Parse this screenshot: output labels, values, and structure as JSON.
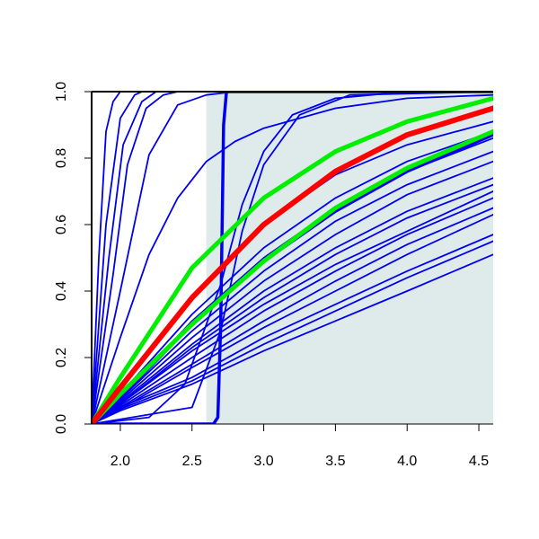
{
  "chart_data": {
    "type": "line",
    "title": "",
    "xlabel": "",
    "ylabel": "",
    "xlim": [
      1.8,
      4.6
    ],
    "ylim": [
      0.0,
      1.0
    ],
    "x_ticks": [
      {
        "value": 2.0,
        "label": "2.0"
      },
      {
        "value": 2.5,
        "label": "2.5"
      },
      {
        "value": 3.0,
        "label": "3.0"
      },
      {
        "value": 3.5,
        "label": "3.5"
      },
      {
        "value": 4.0,
        "label": "4.0"
      },
      {
        "value": 4.5,
        "label": "4.5"
      }
    ],
    "y_ticks": [
      {
        "value": 0.0,
        "label": "0.0"
      },
      {
        "value": 0.2,
        "label": "0.2"
      },
      {
        "value": 0.4,
        "label": "0.4"
      },
      {
        "value": 0.6,
        "label": "0.6"
      },
      {
        "value": 0.8,
        "label": "0.8"
      },
      {
        "value": 1.0,
        "label": "1.0"
      }
    ],
    "shaded_region": {
      "x_from": 2.6,
      "x_to": 4.6,
      "color": "#dfeaea"
    },
    "grid": false,
    "legend": "none",
    "x_start": 1.8,
    "colors": {
      "blue": "#0000ee",
      "red": "#ff0000",
      "green": "#00ee00",
      "axis": "#000000"
    },
    "series": [
      {
        "role": "blue",
        "points": [
          [
            1.8,
            0
          ],
          [
            1.85,
            0.5
          ],
          [
            1.9,
            0.88
          ],
          [
            1.95,
            0.97
          ],
          [
            2.0,
            1.0
          ],
          [
            4.6,
            1.0
          ]
        ]
      },
      {
        "role": "blue",
        "points": [
          [
            1.8,
            0
          ],
          [
            1.9,
            0.6
          ],
          [
            2.0,
            0.92
          ],
          [
            2.1,
            0.99
          ],
          [
            2.15,
            1.0
          ],
          [
            4.6,
            1.0
          ]
        ]
      },
      {
        "role": "blue",
        "points": [
          [
            1.8,
            0
          ],
          [
            1.92,
            0.5
          ],
          [
            2.02,
            0.84
          ],
          [
            2.15,
            0.97
          ],
          [
            2.25,
            1.0
          ],
          [
            4.6,
            1.0
          ]
        ]
      },
      {
        "role": "blue",
        "points": [
          [
            1.8,
            0
          ],
          [
            1.95,
            0.45
          ],
          [
            2.05,
            0.78
          ],
          [
            2.18,
            0.95
          ],
          [
            2.3,
            0.99
          ],
          [
            2.4,
            1.0
          ],
          [
            4.6,
            1.0
          ]
        ]
      },
      {
        "role": "blue",
        "points": [
          [
            1.8,
            0
          ],
          [
            2.0,
            0.4
          ],
          [
            2.2,
            0.81
          ],
          [
            2.4,
            0.96
          ],
          [
            2.6,
            0.99
          ],
          [
            2.8,
            1.0
          ],
          [
            4.6,
            1.0
          ]
        ]
      },
      {
        "role": "blue",
        "points": [
          [
            1.8,
            0
          ],
          [
            2.0,
            0.26
          ],
          [
            2.2,
            0.51
          ],
          [
            2.4,
            0.68
          ],
          [
            2.6,
            0.79
          ],
          [
            2.8,
            0.85
          ],
          [
            3.0,
            0.89
          ],
          [
            3.5,
            0.95
          ],
          [
            4.0,
            0.98
          ],
          [
            4.6,
            0.99
          ]
        ]
      },
      {
        "role": "blue",
        "points": [
          [
            1.8,
            0
          ],
          [
            2.2,
            0.02
          ],
          [
            2.45,
            0.12
          ],
          [
            2.7,
            0.42
          ],
          [
            2.85,
            0.66
          ],
          [
            3.0,
            0.82
          ],
          [
            3.2,
            0.93
          ],
          [
            3.5,
            0.98
          ],
          [
            4.0,
            1.0
          ],
          [
            4.6,
            1.0
          ]
        ]
      },
      {
        "role": "blue",
        "points": [
          [
            1.8,
            0
          ],
          [
            2.5,
            0.05
          ],
          [
            2.7,
            0.28
          ],
          [
            2.85,
            0.58
          ],
          [
            3.0,
            0.78
          ],
          [
            3.25,
            0.93
          ],
          [
            3.6,
            0.99
          ],
          [
            4.6,
            1.0
          ]
        ]
      },
      {
        "role": "blue",
        "points": [
          [
            1.8,
            0
          ],
          [
            2.0,
            0.1
          ],
          [
            2.5,
            0.38
          ],
          [
            3.0,
            0.6
          ],
          [
            3.5,
            0.75
          ],
          [
            4.0,
            0.84
          ],
          [
            4.6,
            0.91
          ]
        ]
      },
      {
        "role": "blue",
        "points": [
          [
            1.8,
            0
          ],
          [
            2.0,
            0.09
          ],
          [
            2.5,
            0.33
          ],
          [
            3.0,
            0.53
          ],
          [
            3.5,
            0.68
          ],
          [
            4.0,
            0.79
          ],
          [
            4.6,
            0.88
          ]
        ]
      },
      {
        "role": "blue",
        "points": [
          [
            1.8,
            0
          ],
          [
            2.0,
            0.08
          ],
          [
            2.5,
            0.31
          ],
          [
            3.0,
            0.5
          ],
          [
            3.5,
            0.65
          ],
          [
            4.0,
            0.76
          ],
          [
            4.6,
            0.86
          ]
        ]
      },
      {
        "role": "blue",
        "points": [
          [
            1.8,
            0
          ],
          [
            2.0,
            0.075
          ],
          [
            2.5,
            0.28
          ],
          [
            3.0,
            0.46
          ],
          [
            3.5,
            0.61
          ],
          [
            4.0,
            0.72
          ],
          [
            4.6,
            0.82
          ]
        ]
      },
      {
        "role": "blue",
        "points": [
          [
            1.8,
            0
          ],
          [
            2.0,
            0.07
          ],
          [
            2.5,
            0.26
          ],
          [
            3.0,
            0.43
          ],
          [
            3.5,
            0.57
          ],
          [
            4.0,
            0.69
          ],
          [
            4.6,
            0.79
          ]
        ]
      },
      {
        "role": "blue",
        "points": [
          [
            1.8,
            0
          ],
          [
            2.0,
            0.06
          ],
          [
            2.5,
            0.23
          ],
          [
            3.0,
            0.38
          ],
          [
            3.5,
            0.51
          ],
          [
            4.0,
            0.62
          ],
          [
            4.6,
            0.72
          ]
        ]
      },
      {
        "role": "blue",
        "points": [
          [
            1.8,
            0
          ],
          [
            2.0,
            0.055
          ],
          [
            2.5,
            0.2
          ],
          [
            3.0,
            0.34
          ],
          [
            3.5,
            0.46
          ],
          [
            4.0,
            0.57
          ],
          [
            4.6,
            0.68
          ]
        ]
      },
      {
        "role": "blue",
        "points": [
          [
            1.8,
            0
          ],
          [
            2.0,
            0.05
          ],
          [
            2.5,
            0.18
          ],
          [
            3.0,
            0.31
          ],
          [
            3.5,
            0.43
          ],
          [
            4.0,
            0.54
          ],
          [
            4.6,
            0.65
          ]
        ]
      },
      {
        "role": "blue",
        "points": [
          [
            1.8,
            0
          ],
          [
            2.0,
            0.045
          ],
          [
            2.5,
            0.17
          ],
          [
            3.0,
            0.29
          ],
          [
            3.5,
            0.4
          ],
          [
            4.0,
            0.51
          ],
          [
            4.6,
            0.63
          ]
        ]
      },
      {
        "role": "blue",
        "points": [
          [
            1.8,
            0
          ],
          [
            2.0,
            0.05
          ],
          [
            2.5,
            0.14
          ],
          [
            3.0,
            0.26
          ],
          [
            3.5,
            0.36
          ],
          [
            4.0,
            0.46
          ],
          [
            4.6,
            0.57
          ]
        ]
      },
      {
        "role": "blue",
        "points": [
          [
            1.8,
            0
          ],
          [
            2.0,
            0.045
          ],
          [
            2.5,
            0.13
          ],
          [
            3.0,
            0.24
          ],
          [
            3.5,
            0.34
          ],
          [
            4.0,
            0.44
          ],
          [
            4.6,
            0.55
          ]
        ]
      },
      {
        "role": "blue",
        "points": [
          [
            1.8,
            0
          ],
          [
            2.0,
            0.04
          ],
          [
            2.5,
            0.12
          ],
          [
            3.0,
            0.22
          ],
          [
            3.5,
            0.31
          ],
          [
            4.0,
            0.4
          ],
          [
            4.6,
            0.51
          ]
        ]
      },
      {
        "role": "blue",
        "points": [
          [
            1.8,
            0
          ],
          [
            2.0,
            0.06
          ],
          [
            2.5,
            0.22
          ],
          [
            3.0,
            0.36
          ],
          [
            3.5,
            0.48
          ],
          [
            4.0,
            0.58
          ],
          [
            4.6,
            0.7
          ]
        ]
      },
      {
        "role": "blue",
        "points": [
          [
            1.8,
            0
          ],
          [
            2.0,
            0.065
          ],
          [
            2.5,
            0.24
          ],
          [
            3.0,
            0.4
          ],
          [
            3.5,
            0.53
          ],
          [
            4.0,
            0.64
          ],
          [
            4.6,
            0.74
          ]
        ]
      },
      {
        "role": "blue-step",
        "points": [
          [
            1.8,
            0
          ],
          [
            2.65,
            0
          ],
          [
            2.68,
            0.02
          ],
          [
            2.7,
            0.3
          ],
          [
            2.72,
            0.9
          ],
          [
            2.74,
            1.0
          ],
          [
            4.6,
            1.0
          ]
        ]
      },
      {
        "role": "blue-thick",
        "points": [
          [
            1.8,
            0
          ],
          [
            2.0,
            0.08
          ],
          [
            2.5,
            0.3
          ],
          [
            3.0,
            0.49
          ],
          [
            3.5,
            0.64
          ],
          [
            4.0,
            0.76
          ],
          [
            4.6,
            0.87
          ]
        ]
      },
      {
        "role": "green",
        "points": [
          [
            1.8,
            0
          ],
          [
            2.0,
            0.14
          ],
          [
            2.5,
            0.47
          ],
          [
            3.0,
            0.68
          ],
          [
            3.5,
            0.82
          ],
          [
            4.0,
            0.91
          ],
          [
            4.6,
            0.98
          ]
        ]
      },
      {
        "role": "green",
        "points": [
          [
            1.8,
            0
          ],
          [
            2.0,
            0.09
          ],
          [
            2.5,
            0.3
          ],
          [
            3.0,
            0.49
          ],
          [
            3.5,
            0.65
          ],
          [
            4.0,
            0.77
          ],
          [
            4.6,
            0.88
          ]
        ]
      },
      {
        "role": "red",
        "points": [
          [
            1.8,
            0
          ],
          [
            2.0,
            0.11
          ],
          [
            2.5,
            0.38
          ],
          [
            3.0,
            0.6
          ],
          [
            3.5,
            0.76
          ],
          [
            4.0,
            0.87
          ],
          [
            4.6,
            0.95
          ]
        ]
      }
    ]
  }
}
